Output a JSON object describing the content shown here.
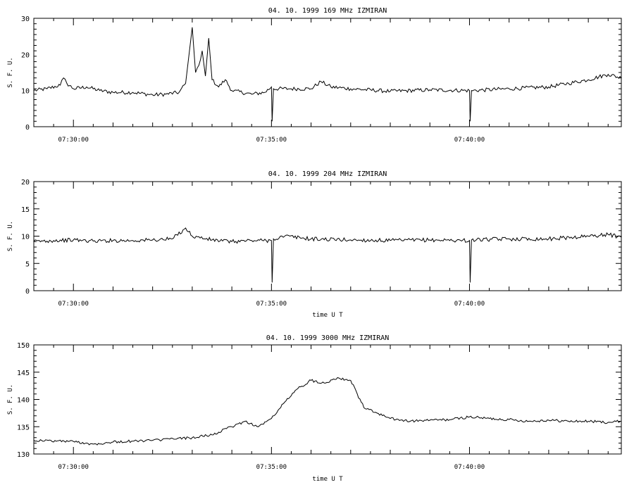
{
  "chart_data": [
    {
      "type": "line",
      "title": "04.  10.  1999    169 MHz    IZMIRAN",
      "ylabel": "S. F. U.",
      "xlabel": "",
      "ylim": [
        0,
        30
      ],
      "yticks": [
        0,
        10,
        20,
        30
      ],
      "xlim": [
        "07:29:00",
        "07:43:50"
      ],
      "xticks": [
        "07:30:00",
        "07:35:00",
        "07:40:00"
      ],
      "series": [
        {
          "points": [
            [
              "07:29:00",
              10
            ],
            [
              "07:29:20",
              10.5
            ],
            [
              "07:29:40",
              11.5
            ],
            [
              "07:29:45",
              13.5
            ],
            [
              "07:29:50",
              12
            ],
            [
              "07:30:00",
              10.5
            ],
            [
              "07:30:20",
              11
            ],
            [
              "07:30:40",
              10
            ],
            [
              "07:31:00",
              9.5
            ],
            [
              "07:31:30",
              9.5
            ],
            [
              "07:32:00",
              8.8
            ],
            [
              "07:32:20",
              9
            ],
            [
              "07:32:40",
              9.5
            ],
            [
              "07:32:50",
              12
            ],
            [
              "07:33:00",
              27.5
            ],
            [
              "07:33:05",
              15
            ],
            [
              "07:33:10",
              17
            ],
            [
              "07:33:15",
              21
            ],
            [
              "07:33:20",
              14
            ],
            [
              "07:33:25",
              24.5
            ],
            [
              "07:33:30",
              13
            ],
            [
              "07:33:40",
              11
            ],
            [
              "07:33:50",
              13
            ],
            [
              "07:34:00",
              10
            ],
            [
              "07:34:30",
              9
            ],
            [
              "07:34:50",
              9.5
            ],
            [
              "07:35:00",
              11
            ],
            [
              "07:35:01",
              1.5
            ],
            [
              "07:35:03",
              10.5
            ],
            [
              "07:35:30",
              10.5
            ],
            [
              "07:36:00",
              10.5
            ],
            [
              "07:36:15",
              12.5
            ],
            [
              "07:36:30",
              11
            ],
            [
              "07:37:00",
              10.5
            ],
            [
              "07:38:00",
              9.8
            ],
            [
              "07:39:00",
              10.2
            ],
            [
              "07:40:00",
              10
            ],
            [
              "07:40:01",
              1.5
            ],
            [
              "07:40:03",
              10
            ],
            [
              "07:41:00",
              10.5
            ],
            [
              "07:42:00",
              11
            ],
            [
              "07:42:30",
              12
            ],
            [
              "07:43:00",
              13
            ],
            [
              "07:43:30",
              14.5
            ],
            [
              "07:43:50",
              13.5
            ]
          ]
        }
      ]
    },
    {
      "type": "line",
      "title": "04.  10.  1999    204 MHz    IZMIRAN",
      "ylabel": "S. F. U.",
      "xlabel": "time  U T",
      "ylim": [
        0,
        20
      ],
      "yticks": [
        0,
        5,
        10,
        15,
        20
      ],
      "xlim": [
        "07:29:00",
        "07:43:50"
      ],
      "xticks": [
        "07:30:00",
        "07:35:00",
        "07:40:00"
      ],
      "series": [
        {
          "points": [
            [
              "07:29:00",
              9
            ],
            [
              "07:29:30",
              9.2
            ],
            [
              "07:30:00",
              9.3
            ],
            [
              "07:30:30",
              9.1
            ],
            [
              "07:31:00",
              9.2
            ],
            [
              "07:31:30",
              9.2
            ],
            [
              "07:32:00",
              9.3
            ],
            [
              "07:32:30",
              9.5
            ],
            [
              "07:32:50",
              11.5
            ],
            [
              "07:33:00",
              10
            ],
            [
              "07:33:30",
              9.3
            ],
            [
              "07:34:00",
              9
            ],
            [
              "07:34:30",
              9.2
            ],
            [
              "07:35:00",
              9.2
            ],
            [
              "07:35:01",
              1.5
            ],
            [
              "07:35:03",
              9.5
            ],
            [
              "07:35:20",
              10
            ],
            [
              "07:36:00",
              9.5
            ],
            [
              "07:37:00",
              9.3
            ],
            [
              "07:38:00",
              9.2
            ],
            [
              "07:39:00",
              9.3
            ],
            [
              "07:40:00",
              9.2
            ],
            [
              "07:40:01",
              1.5
            ],
            [
              "07:40:03",
              9.3
            ],
            [
              "07:41:00",
              9.5
            ],
            [
              "07:42:00",
              9.5
            ],
            [
              "07:43:00",
              10
            ],
            [
              "07:43:30",
              10.3
            ],
            [
              "07:43:50",
              9.8
            ]
          ]
        }
      ]
    },
    {
      "type": "line",
      "title": "04.  10.  1999    3000 MHz    IZMIRAN",
      "ylabel": "S. F. U.",
      "xlabel": "time  U T",
      "ylim": [
        130,
        150
      ],
      "yticks": [
        130,
        135,
        140,
        145,
        150
      ],
      "xlim": [
        "07:29:00",
        "07:43:50"
      ],
      "xticks": [
        "07:30:00",
        "07:35:00",
        "07:40:00"
      ],
      "series": [
        {
          "points": [
            [
              "07:29:00",
              132.5
            ],
            [
              "07:30:00",
              132.3
            ],
            [
              "07:30:30",
              131.8
            ],
            [
              "07:31:00",
              132.2
            ],
            [
              "07:32:00",
              132.5
            ],
            [
              "07:33:00",
              133
            ],
            [
              "07:33:30",
              133.5
            ],
            [
              "07:34:00",
              135
            ],
            [
              "07:34:20",
              136
            ],
            [
              "07:34:40",
              135
            ],
            [
              "07:35:00",
              136.5
            ],
            [
              "07:35:20",
              139.5
            ],
            [
              "07:35:40",
              142
            ],
            [
              "07:36:00",
              143.5
            ],
            [
              "07:36:20",
              143
            ],
            [
              "07:36:40",
              144
            ],
            [
              "07:37:00",
              143.5
            ],
            [
              "07:37:10",
              141
            ],
            [
              "07:37:20",
              138.5
            ],
            [
              "07:37:40",
              137.5
            ],
            [
              "07:38:00",
              136.5
            ],
            [
              "07:38:30",
              136
            ],
            [
              "07:39:00",
              136.2
            ],
            [
              "07:39:30",
              136.3
            ],
            [
              "07:40:00",
              136.8
            ],
            [
              "07:40:30",
              136.5
            ],
            [
              "07:41:00",
              136.3
            ],
            [
              "07:41:30",
              136
            ],
            [
              "07:42:00",
              136.2
            ],
            [
              "07:42:30",
              136
            ],
            [
              "07:43:00",
              136
            ],
            [
              "07:43:30",
              135.8
            ],
            [
              "07:43:50",
              136
            ]
          ]
        }
      ]
    }
  ]
}
